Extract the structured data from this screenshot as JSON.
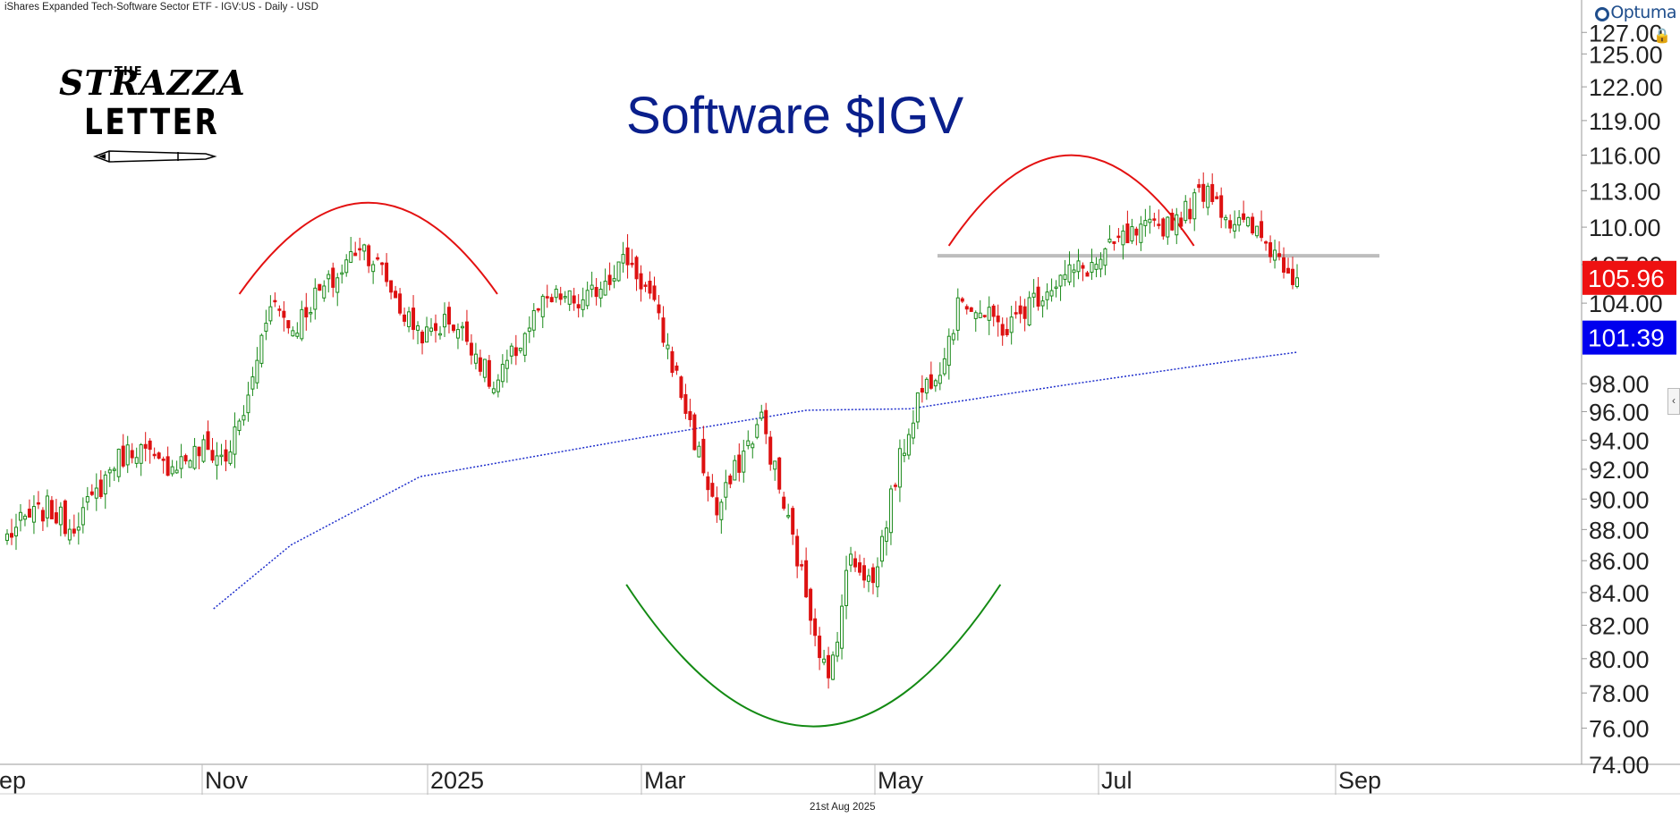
{
  "header": {
    "title": "iShares Expanded Tech-Software Sector ETF - IGV:US - Daily - USD"
  },
  "brand": {
    "name": "Optuma",
    "mark_icon": "optuma-logo-icon"
  },
  "logo": {
    "line1": "THE",
    "line2": "STRAZZA",
    "line3": "LETTER",
    "pen_icon": "fountain-pen-icon"
  },
  "footer": {
    "date": "21st Aug 2025"
  },
  "icons": {
    "lock": "lock-icon",
    "collapse": "chevron-left-icon"
  },
  "chart_data": {
    "type": "candlestick",
    "title": "Software $IGV",
    "y_scale": "log",
    "ylim": [
      74.0,
      128.2
    ],
    "x_tick_labels": [
      "Sep",
      "Nov",
      "2025",
      "Mar",
      "May",
      "Jul",
      "Sep"
    ],
    "y_tick_labels": [
      "74.00",
      "76.00",
      "78.00",
      "80.00",
      "82.00",
      "84.00",
      "86.00",
      "88.00",
      "90.00",
      "92.00",
      "94.00",
      "96.00",
      "98.00",
      "104.00",
      "107.00",
      "110.00",
      "113.00",
      "116.00",
      "119.00",
      "122.00",
      "125.00",
      "127.00"
    ],
    "last_price": {
      "label": "105.96",
      "value": 105.96,
      "color": "#ee1111"
    },
    "moving_average": {
      "label": "101.39",
      "value": 101.39,
      "color": "#0000ee"
    },
    "colors": {
      "up": "#1a8a1a",
      "down": "#dd1111",
      "ma": "#1f2fcc",
      "resistance": "#bdbdbd"
    },
    "resistance_level": 107.7,
    "bars_per_week": 5,
    "weekly_path": [
      [
        87.3,
        88.6
      ],
      [
        88.6,
        89.4
      ],
      [
        89.4,
        88.2
      ],
      [
        88.2,
        89.8
      ],
      [
        89.8,
        92.5
      ],
      [
        92.5,
        93.6
      ],
      [
        93.6,
        92.2
      ],
      [
        92.2,
        92.6
      ],
      [
        92.6,
        93.4
      ],
      [
        93.4,
        92.7
      ],
      [
        92.7,
        96.8
      ],
      [
        96.8,
        104.5
      ],
      [
        104.5,
        102.0
      ],
      [
        102.0,
        104.5
      ],
      [
        104.5,
        106.0
      ],
      [
        106.0,
        108.8
      ],
      [
        108.8,
        106.5
      ],
      [
        106.5,
        103.0
      ],
      [
        103.0,
        101.5
      ],
      [
        101.5,
        102.8
      ],
      [
        102.8,
        101.0
      ],
      [
        101.0,
        97.5
      ],
      [
        97.5,
        100.5
      ],
      [
        100.5,
        103.5
      ],
      [
        103.5,
        104.5
      ],
      [
        104.5,
        103.8
      ],
      [
        103.8,
        106.0
      ],
      [
        106.0,
        107.5
      ],
      [
        107.5,
        104.5
      ],
      [
        104.5,
        99.5
      ],
      [
        99.5,
        94.0
      ],
      [
        94.0,
        89.0
      ],
      [
        89.0,
        92.5
      ],
      [
        92.5,
        95.5
      ],
      [
        95.5,
        89.5
      ],
      [
        89.5,
        84.0
      ],
      [
        84.0,
        78.5
      ],
      [
        78.5,
        86.5
      ],
      [
        86.5,
        84.5
      ],
      [
        84.5,
        91.5
      ],
      [
        91.5,
        97.0
      ],
      [
        97.0,
        99.5
      ],
      [
        99.5,
        104.5
      ],
      [
        104.5,
        103.0
      ],
      [
        103.0,
        102.0
      ],
      [
        102.0,
        104.0
      ],
      [
        104.0,
        105.5
      ],
      [
        105.5,
        106.5
      ],
      [
        106.5,
        107.0
      ],
      [
        107.0,
        108.8
      ],
      [
        108.8,
        109.5
      ],
      [
        109.5,
        110.2
      ],
      [
        110.2,
        111.2
      ],
      [
        111.2,
        113.5
      ],
      [
        113.5,
        110.5
      ],
      [
        110.5,
        109.8
      ],
      [
        109.8,
        108.0
      ],
      [
        108.0,
        105.96
      ]
    ],
    "ma_path": [
      [
        0.16,
        83.0
      ],
      [
        0.22,
        87.0
      ],
      [
        0.32,
        91.5
      ],
      [
        0.48,
        94.0
      ],
      [
        0.62,
        96.1
      ],
      [
        0.7,
        96.2
      ],
      [
        0.82,
        97.9
      ],
      [
        0.96,
        99.8
      ],
      [
        1.0,
        100.3
      ]
    ],
    "annotations": [
      {
        "type": "arc",
        "color": "#e31111",
        "direction": "top",
        "start_week": 0.18,
        "end_week": 0.38,
        "start_value": 104.7,
        "peak_value": 112.0
      },
      {
        "type": "arc",
        "color": "#e31111",
        "direction": "top",
        "start_week": 0.73,
        "end_week": 0.92,
        "start_value": 108.5,
        "peak_value": 116.0
      },
      {
        "type": "arc",
        "color": "#138a13",
        "direction": "bottom",
        "start_week": 0.48,
        "end_week": 0.77,
        "start_value": 84.5,
        "peak_value": 76.1
      }
    ]
  }
}
